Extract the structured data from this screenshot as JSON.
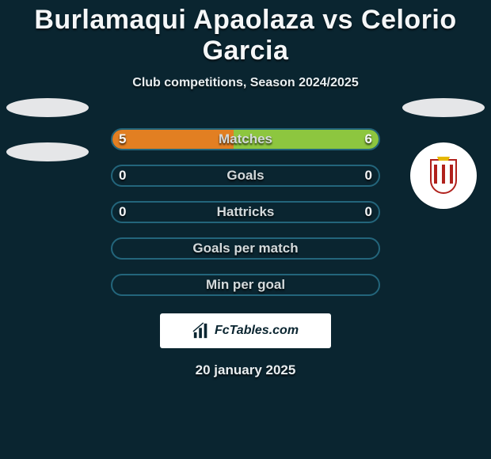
{
  "title": "Burlamaqui Apaolaza vs Celorio Garcia",
  "subtitle": "Club competitions, Season 2024/2025",
  "date": "20 january 2025",
  "brand": "FcTables.com",
  "palette": {
    "background": "#0a2530",
    "track_border": "#23657b",
    "left_fill": "#e27f22",
    "right_fill": "#8dc63f",
    "text": "#f5f7f8",
    "muted_text": "#d4dadc"
  },
  "stat_rows": [
    {
      "label": "Matches",
      "left": "5",
      "right": "6",
      "left_pct": 45.5,
      "right_pct": 54.5
    },
    {
      "label": "Goals",
      "left": "0",
      "right": "0",
      "left_pct": 0,
      "right_pct": 0
    },
    {
      "label": "Hattricks",
      "left": "0",
      "right": "0",
      "left_pct": 0,
      "right_pct": 0
    },
    {
      "label": "Goals per match",
      "left": "",
      "right": "",
      "left_pct": 0,
      "right_pct": 0
    },
    {
      "label": "Min per goal",
      "left": "",
      "right": "",
      "left_pct": 0,
      "right_pct": 0
    }
  ],
  "right_club": "Sporting Gijón"
}
